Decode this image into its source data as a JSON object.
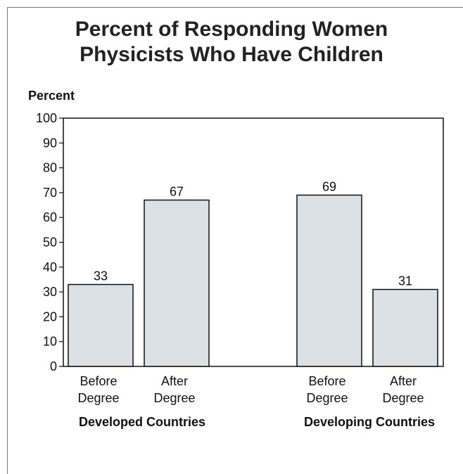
{
  "chart_data": {
    "type": "bar",
    "title_lines": [
      "Percent of Responding Women",
      "Physicists Who Have Children"
    ],
    "ylabel": "Percent",
    "xlabel": "",
    "ylim": [
      0,
      100
    ],
    "yticks": [
      0,
      10,
      20,
      30,
      40,
      50,
      60,
      70,
      80,
      90,
      100
    ],
    "grid": false,
    "bar_color": "#dce1e6",
    "groups": [
      {
        "name": "Developed Countries",
        "bars": [
          {
            "label_lines": [
              "Before",
              "Degree"
            ],
            "value": 33
          },
          {
            "label_lines": [
              "After",
              "Degree"
            ],
            "value": 67
          }
        ]
      },
      {
        "name": "Developing Countries",
        "bars": [
          {
            "label_lines": [
              "Before",
              "Degree"
            ],
            "value": 69
          },
          {
            "label_lines": [
              "After",
              "Degree"
            ],
            "value": 31
          }
        ]
      }
    ]
  }
}
